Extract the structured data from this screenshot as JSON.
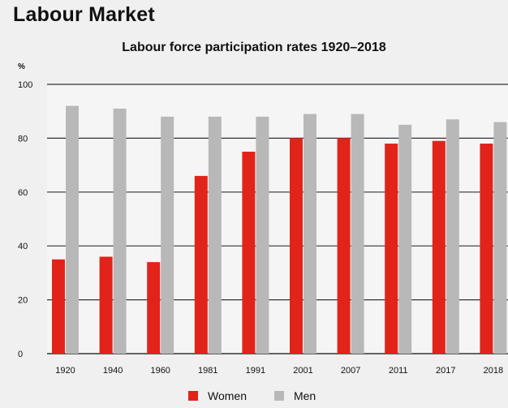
{
  "page_heading": "Labour Market",
  "chart_data": {
    "type": "bar",
    "title": "Labour force participation rates 1920–2018",
    "ylabel": "%",
    "xlabel": "",
    "ylim": [
      0,
      100
    ],
    "yticks": [
      0,
      20,
      40,
      60,
      80,
      100
    ],
    "grid": true,
    "legend_position": "bottom",
    "categories": [
      "1920",
      "1940",
      "1960",
      "1981",
      "1991",
      "2001",
      "2007",
      "2011",
      "2017",
      "2018"
    ],
    "series": [
      {
        "name": "Women",
        "color": "#e2231a",
        "values": [
          35,
          36,
          34,
          66,
          75,
          80,
          80,
          78,
          79,
          78
        ]
      },
      {
        "name": "Men",
        "color": "#b8b8b8",
        "values": [
          92,
          91,
          88,
          88,
          88,
          89,
          89,
          85,
          87,
          86
        ]
      }
    ]
  }
}
